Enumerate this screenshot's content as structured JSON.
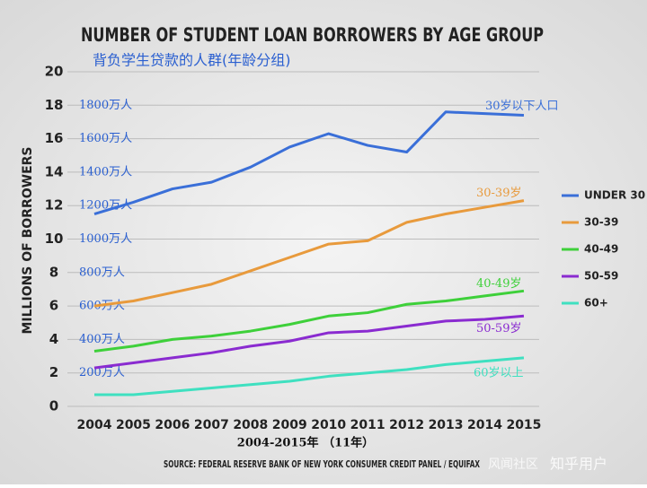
{
  "chart_data": {
    "type": "line",
    "title": "NUMBER OF STUDENT LOAN BORROWERS BY AGE GROUP",
    "subtitle": "背负学生贷款的人群(年龄分组)",
    "y_label": "MILLIONS OF BORROWERS",
    "x_label": "2004-2015年 （11年）",
    "source": "SOURCE: FEDERAL RESERVE BANK OF NEW YORK CONSUMER CREDIT PANEL / EQUIFAX",
    "watermarks": [
      "风闻社区",
      "知乎用户"
    ],
    "categories": [
      "2004",
      "2005",
      "2006",
      "2007",
      "2008",
      "2009",
      "2010",
      "2011",
      "2012",
      "2013",
      "2014",
      "2015"
    ],
    "ylim": [
      0,
      20
    ],
    "yticks": [
      0,
      2,
      4,
      6,
      8,
      10,
      12,
      14,
      16,
      18,
      20
    ],
    "grid": true,
    "legend": "right",
    "y_labels_cn": [
      {
        "value": 18,
        "label": "1800万人"
      },
      {
        "value": 16,
        "label": "1600万人"
      },
      {
        "value": 14,
        "label": "1400万人"
      },
      {
        "value": 12,
        "label": "1200万人"
      },
      {
        "value": 10,
        "label": "1000万人"
      },
      {
        "value": 8,
        "label": "800万人"
      },
      {
        "value": 6,
        "label": "600万人"
      },
      {
        "value": 4,
        "label": "400万人"
      },
      {
        "value": 2,
        "label": "200万人"
      }
    ],
    "series": [
      {
        "name": "UNDER 30",
        "color": "#3a6fd8",
        "annotation": "30岁以下人口",
        "values": [
          11.5,
          12.2,
          13.0,
          13.4,
          14.3,
          15.5,
          16.3,
          15.6,
          15.2,
          17.6,
          17.5,
          17.4
        ]
      },
      {
        "name": "30-39",
        "color": "#e89a3c",
        "annotation": "30-39岁",
        "values": [
          6.0,
          6.3,
          6.8,
          7.3,
          8.1,
          8.9,
          9.7,
          9.9,
          11.0,
          11.5,
          11.9,
          12.3
        ]
      },
      {
        "name": "40-49",
        "color": "#3ed03a",
        "annotation": "40-49岁",
        "values": [
          3.3,
          3.6,
          4.0,
          4.2,
          4.5,
          4.9,
          5.4,
          5.6,
          6.1,
          6.3,
          6.6,
          6.9
        ]
      },
      {
        "name": "50-59",
        "color": "#8a2bd0",
        "annotation": "50-59岁",
        "values": [
          2.3,
          2.6,
          2.9,
          3.2,
          3.6,
          3.9,
          4.4,
          4.5,
          4.8,
          5.1,
          5.2,
          5.4
        ]
      },
      {
        "name": "60+",
        "color": "#3fe0c0",
        "annotation": "60岁以上",
        "values": [
          0.7,
          0.7,
          0.9,
          1.1,
          1.3,
          1.5,
          1.8,
          2.0,
          2.2,
          2.5,
          2.7,
          2.9
        ]
      }
    ]
  }
}
